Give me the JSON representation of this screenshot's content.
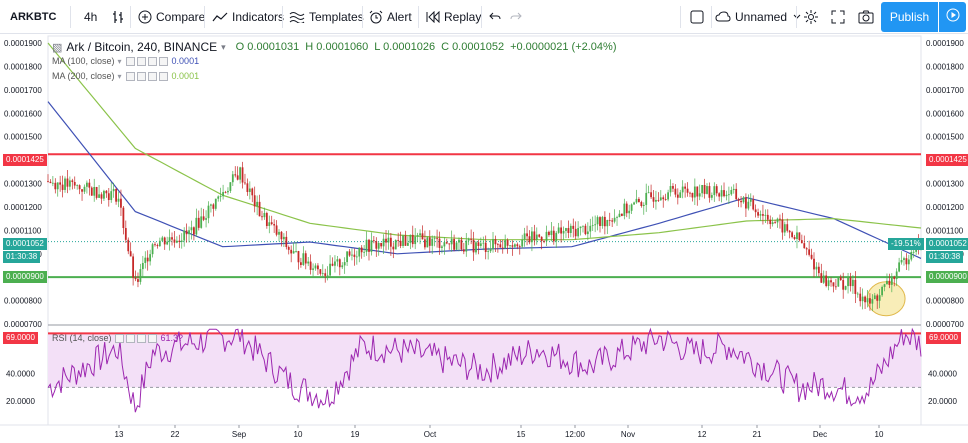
{
  "toolbar": {
    "symbol": "ARKBTC",
    "interval": "4h",
    "compare": "Compare",
    "indicators": "Indicators",
    "templates": "Templates",
    "alert": "Alert",
    "replay": "Replay",
    "layout_name": "Unnamed",
    "publish": "Publish"
  },
  "legend": {
    "title": "Ark / Bitcoin, 240, BINANCE",
    "open": "O 0.0001031",
    "high": "H 0.0001060",
    "low": "L 0.0001026",
    "close": "C 0.0001052",
    "change": "+0.0000021 (+2.04%)",
    "ma100_label": "MA (100, close)",
    "ma100_value": "0.0001",
    "ma200_label": "MA (200, close)",
    "ma200_value": "0.0001",
    "rsi_label": "RSI (14, close)",
    "rsi_value": "61.3?"
  },
  "price_axis": [
    "0.0001900",
    "0.0001800",
    "0.0001700",
    "0.0001600",
    "0.0001500",
    "0.0001400",
    "0.0001300",
    "0.0001200",
    "0.0001100",
    "0.0001000",
    "0.0000900",
    "0.0000800",
    "0.0000700"
  ],
  "rsi_axis": [
    "69.0000",
    "40.0000",
    "20.0000"
  ],
  "price_tags": {
    "resistance": "0.0001425",
    "last": "0.0001052",
    "countdown": "01:30:38",
    "support": "0.0000900",
    "pct": "-19.51%"
  },
  "time_axis": [
    "13",
    "22",
    "Sep",
    "10",
    "19",
    "Oct",
    "15",
    "12:00",
    "Nov",
    "12",
    "21",
    "Dec",
    "10"
  ],
  "colors": {
    "resistance_line": "#f23645",
    "support_line": "#4caf50",
    "ma100": "#3f51b5",
    "ma200": "#8bc34a",
    "up": "#4caf50",
    "down": "#c62828",
    "rsi_line": "#9c27b0",
    "rsi_band": "#f3e0f7",
    "highlight": "#f6e9a6",
    "accent": "#2196f3"
  },
  "icons": [
    "bars-icon",
    "plus-circle-icon",
    "indicators-icon",
    "templates-icon",
    "alarm-clock-icon",
    "replay-icon",
    "undo-icon",
    "redo-icon",
    "square-icon",
    "cloud-icon",
    "gear-icon",
    "fullscreen-icon",
    "camera-icon",
    "play-icon"
  ],
  "chart_data": {
    "type": "candlestick",
    "title": "Ark / Bitcoin, 240, BINANCE",
    "last_close": 0.0001052,
    "horizontal_lines": [
      0.0001425,
      9e-05
    ],
    "series": [
      {
        "name": "MA (100, close)",
        "x": [
          0,
          10,
          20,
          30,
          40,
          50,
          60,
          70,
          80,
          90,
          100
        ],
        "values": [
          0.000165,
          0.000118,
          0.000103,
          0.000105,
          0.0001,
          0.000102,
          0.000103,
          0.000113,
          0.000124,
          0.000115,
          9.8e-05
        ]
      },
      {
        "name": "MA (200, close)",
        "x": [
          0,
          10,
          20,
          30,
          40,
          50,
          60,
          70,
          80,
          90,
          100
        ],
        "values": [
          0.00019,
          0.000145,
          0.000125,
          0.000113,
          0.000108,
          0.000106,
          0.000106,
          0.000109,
          0.000114,
          0.000115,
          0.000111
        ]
      }
    ],
    "close_path": {
      "x": [
        0,
        8,
        10,
        12,
        16,
        22,
        24,
        28,
        32,
        36,
        42,
        50,
        56,
        62,
        70,
        74,
        78,
        82,
        86,
        89,
        92,
        94,
        96,
        98,
        99,
        100
      ],
      "values": [
        0.000131,
        0.000125,
        8.6e-05,
        0.000105,
        0.000108,
        0.000135,
        0.000119,
        0.0001,
        9.2e-05,
        0.000103,
        0.000106,
        0.000103,
        0.000107,
        0.000111,
        0.000126,
        0.000127,
        0.000126,
        0.000117,
        0.000106,
        8.8e-05,
        8.7e-05,
        7.8e-05,
        8.6e-05,
        9.6e-05,
        0.000103,
        0.0001052
      ]
    },
    "rsi": {
      "x": [
        0,
        8,
        10,
        12,
        16,
        22,
        24,
        28,
        32,
        36,
        42,
        50,
        56,
        62,
        70,
        74,
        78,
        82,
        86,
        89,
        92,
        94,
        96,
        98,
        99,
        100
      ],
      "values": [
        30,
        58,
        15,
        55,
        62,
        68,
        55,
        32,
        22,
        60,
        55,
        42,
        58,
        45,
        66,
        55,
        60,
        45,
        30,
        32,
        26,
        28,
        48,
        69,
        66,
        61
      ],
      "overbought": 69,
      "oversold": 30
    },
    "ylim": [
      7e-05,
      0.000193
    ],
    "yticks": [
      0.00019,
      0.00018,
      0.00017,
      0.00016,
      0.00015,
      0.00014,
      0.00013,
      0.00012,
      0.00011,
      0.0001,
      9e-05,
      8e-05,
      7e-05
    ],
    "xticks": [
      "13",
      "22",
      "Sep",
      "10",
      "19",
      "Oct",
      "15",
      "12:00",
      "Nov",
      "12",
      "21",
      "Dec",
      "10"
    ]
  }
}
